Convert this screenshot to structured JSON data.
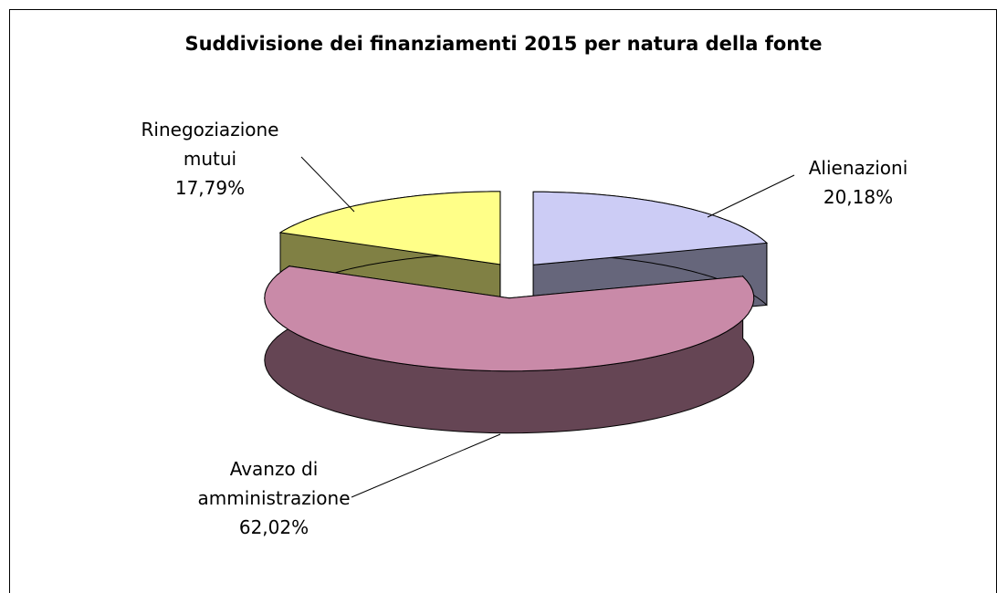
{
  "chart_data": {
    "type": "pie3d",
    "title": "Suddivisione dei finanziamenti 2015 per natura della fonte",
    "categories": [
      "Alienazioni",
      "Avanzo di amministrazione",
      "Rinegoziazione mutui"
    ],
    "values": [
      20.18,
      62.02,
      17.79
    ],
    "value_labels": [
      "20,18%",
      "62,02%",
      "17,79%"
    ],
    "colors": [
      "#ccccf5",
      "#c98aa8",
      "#ffff88"
    ]
  }
}
